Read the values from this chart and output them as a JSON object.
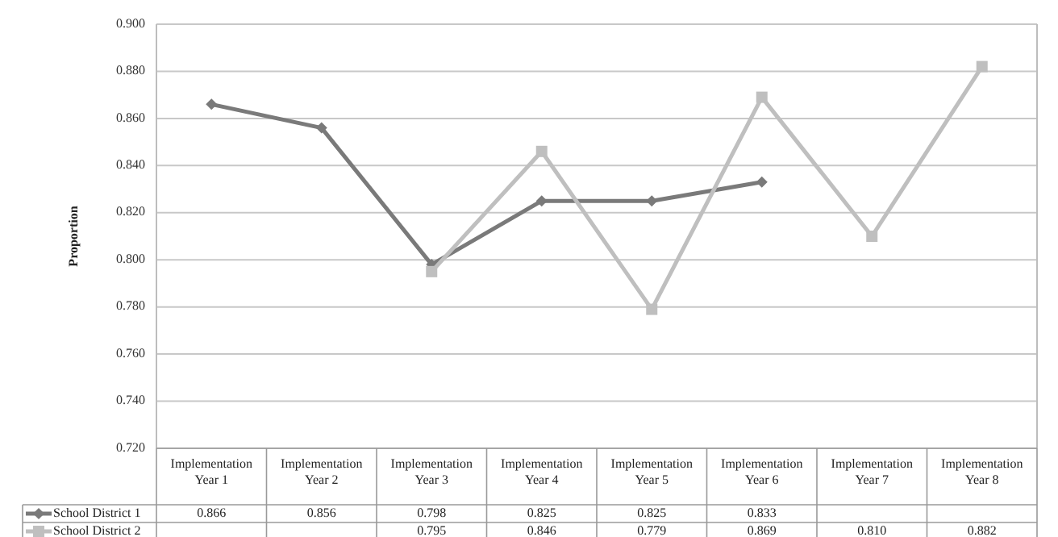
{
  "chart_data": {
    "type": "line",
    "ylabel": "Proportion",
    "categories": [
      "Implementation Year 1",
      "Implementation Year 2",
      "Implementation Year 3",
      "Implementation Year 4",
      "Implementation Year 5",
      "Implementation Year 6",
      "Implementation Year 7",
      "Implementation Year 8"
    ],
    "series": [
      {
        "name": "School District 1",
        "color": "#7a7a7a",
        "marker": "diamond",
        "values": [
          0.866,
          0.856,
          0.798,
          0.825,
          0.825,
          0.833,
          null,
          null
        ],
        "value_labels": [
          "0.866",
          "0.856",
          "0.798",
          "0.825",
          "0.825",
          "0.833",
          null,
          null
        ]
      },
      {
        "name": "School District 2",
        "color": "#bfbfbf",
        "marker": "square",
        "values": [
          null,
          null,
          0.795,
          0.846,
          0.779,
          0.869,
          0.81,
          0.882
        ],
        "value_labels": [
          null,
          null,
          "0.795",
          "0.846",
          "0.779",
          "0.869",
          "0.810",
          "0.882"
        ]
      }
    ],
    "ylim": [
      0.72,
      0.9
    ],
    "yticks": [
      {
        "value": 0.72,
        "label": "0.720"
      },
      {
        "value": 0.74,
        "label": "0.740"
      },
      {
        "value": 0.76,
        "label": "0.760"
      },
      {
        "value": 0.78,
        "label": "0.780"
      },
      {
        "value": 0.8,
        "label": "0.800"
      },
      {
        "value": 0.82,
        "label": "0.820"
      },
      {
        "value": 0.84,
        "label": "0.840"
      },
      {
        "value": 0.86,
        "label": "0.860"
      },
      {
        "value": 0.88,
        "label": "0.880"
      },
      {
        "value": 0.9,
        "label": "0.900"
      }
    ],
    "grid": "y",
    "legend": "bottom"
  }
}
